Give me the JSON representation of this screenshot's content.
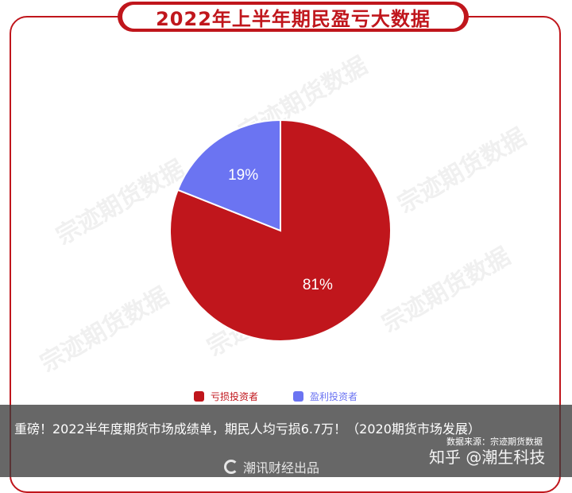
{
  "title": "2022年上半年期民盈亏大数据",
  "watermark": "宗迹期货数据",
  "chart_data": {
    "type": "pie",
    "title": "2022年上半年期民盈亏大数据",
    "slices": [
      {
        "name": "亏损投资者",
        "value": 81,
        "label": "81%",
        "color": "#c0161c"
      },
      {
        "name": "盈利投资者",
        "value": 19,
        "label": "19%",
        "color": "#6b74f2"
      }
    ],
    "legend": "bottom"
  },
  "caption": {
    "headline": "重磅！2022半年度期货市场成绩单，期民人均亏损6.7万！（2020期货市场发展）",
    "source": "数据来源：宗迹期货数据",
    "zhihu": "知乎 @潮生科技",
    "brand": "潮讯财经出品"
  }
}
